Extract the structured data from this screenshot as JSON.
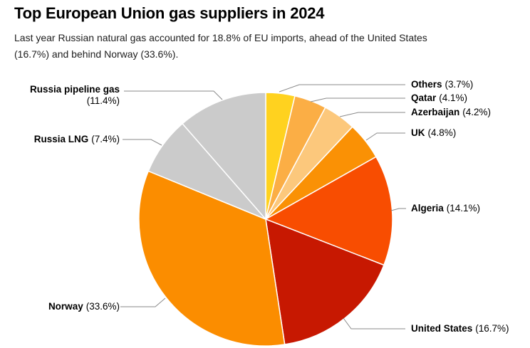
{
  "header": {
    "title": "Top European Union gas suppliers in 2024",
    "subtitle_line1": "Last year Russian natural gas accounted for 18.8% of EU imports, ahead of the United States",
    "subtitle_line2": "(16.7%) and behind Norway (33.6%)."
  },
  "chart_data": {
    "type": "pie",
    "title": "Top European Union gas suppliers in 2024",
    "direction": "clockwise",
    "start_angle": "12-oclock",
    "legend_position": "callout-labels",
    "leader_line_color": "#8a8a8a",
    "slice_border_color": "#ffffff",
    "slices": [
      {
        "name": "Others",
        "value": 3.7,
        "pct": "(3.7%)",
        "color": "#FFD21F"
      },
      {
        "name": "Qatar",
        "value": 4.1,
        "pct": "(4.1%)",
        "color": "#FBAE45"
      },
      {
        "name": "Azerbaijan",
        "value": 4.2,
        "pct": "(4.2%)",
        "color": "#FCC87C"
      },
      {
        "name": "UK",
        "value": 4.8,
        "pct": "(4.8%)",
        "color": "#FA9105"
      },
      {
        "name": "Algeria",
        "value": 14.1,
        "pct": "(14.1%)",
        "color": "#F84D01"
      },
      {
        "name": "United States",
        "value": 16.7,
        "pct": "(16.7%)",
        "color": "#C71801"
      },
      {
        "name": "Norway",
        "value": 33.6,
        "pct": "(33.6%)",
        "color": "#FB8D00"
      },
      {
        "name": "Russia LNG",
        "value": 7.4,
        "pct": "(7.4%)",
        "color": "#CBCBCB"
      },
      {
        "name": "Russia pipeline gas",
        "value": 11.4,
        "pct": "(11.4%)",
        "color": "#CBCBCB"
      }
    ]
  }
}
